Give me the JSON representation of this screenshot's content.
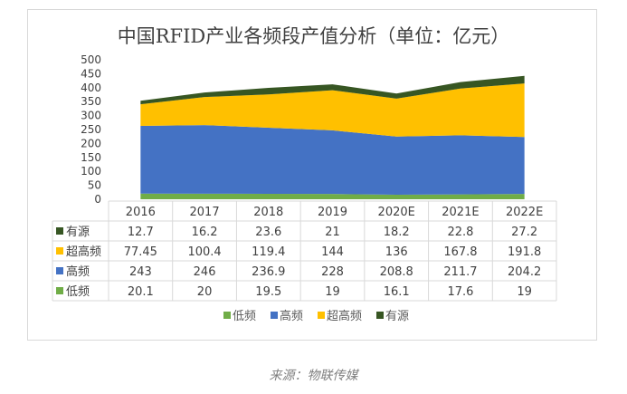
{
  "chart_data": {
    "type": "area",
    "stacked": true,
    "title": "中国RFID产业各频段产值分析（单位：亿元）",
    "categories": [
      "2016",
      "2017",
      "2018",
      "2019",
      "2020E",
      "2021E",
      "2022E"
    ],
    "ylim": [
      0,
      500
    ],
    "yticks": [
      0,
      50,
      100,
      150,
      200,
      250,
      300,
      350,
      400,
      450,
      500
    ],
    "legend_position": "bottom",
    "grid": false,
    "series": [
      {
        "name": "低频",
        "color": "#70ad47",
        "values": [
          20.1,
          20,
          19.5,
          19,
          16.1,
          17.6,
          19
        ]
      },
      {
        "name": "高频",
        "color": "#4472c4",
        "values": [
          243,
          246,
          236.9,
          228,
          208.8,
          211.7,
          204.2
        ]
      },
      {
        "name": "超高频",
        "color": "#ffc000",
        "values": [
          77.45,
          100.4,
          119.4,
          144,
          136,
          167.8,
          191.8
        ]
      },
      {
        "name": "有源",
        "color": "#375623",
        "values": [
          12.7,
          16.2,
          23.6,
          21,
          18.2,
          22.8,
          27.2
        ]
      }
    ],
    "table_row_order": [
      "有源",
      "超高频",
      "高频",
      "低频"
    ]
  },
  "source": "来源：物联传媒"
}
